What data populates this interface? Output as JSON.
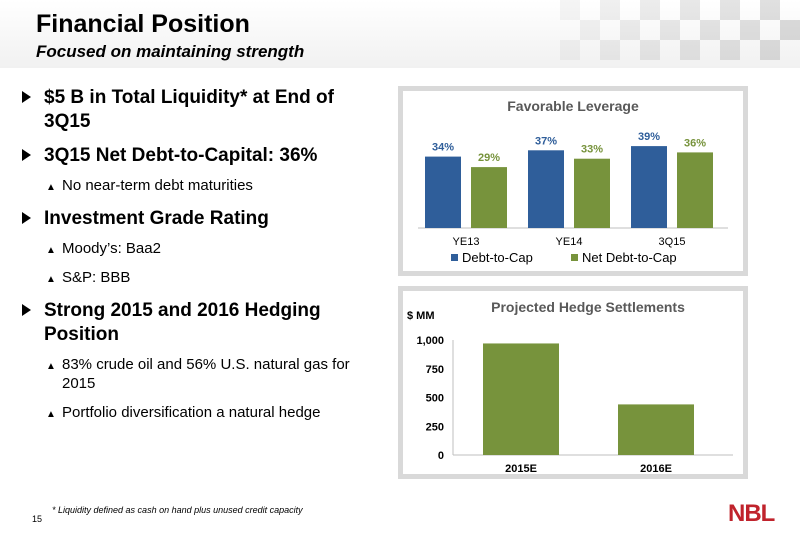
{
  "header": {
    "title": "Financial Position",
    "subtitle": "Focused on maintaining strength"
  },
  "bullets": [
    {
      "text": "$5 B in Total Liquidity* at End of 3Q15",
      "subs": []
    },
    {
      "text": "3Q15 Net Debt-to-Capital: 36%",
      "subs": [
        "No near-term debt maturities"
      ]
    },
    {
      "text": "Investment Grade Rating",
      "subs": [
        "Moody’s: Baa2",
        "S&P: BBB"
      ]
    },
    {
      "text": "Strong 2015 and 2016 Hedging Position",
      "subs": [
        "83% crude oil and 56% U.S. natural gas for 2015",
        "Portfolio diversification a natural hedge"
      ]
    }
  ],
  "footnote": "* Liquidity defined as cash on hand plus unused credit capacity",
  "page_number": "15",
  "logo_text": "NBL",
  "colors": {
    "blue": "#2f5e9a",
    "green": "#77933c",
    "logo_red": "#c0232c"
  },
  "chart_data": [
    {
      "type": "bar",
      "title": "Favorable Leverage",
      "categories": [
        "YE13",
        "YE14",
        "3Q15"
      ],
      "series": [
        {
          "name": "Debt-to-Cap",
          "values": [
            34,
            37,
            39
          ],
          "labels": [
            "34%",
            "37%",
            "39%"
          ],
          "color": "#2f5e9a"
        },
        {
          "name": "Net Debt-to-Cap",
          "values": [
            29,
            33,
            36
          ],
          "labels": [
            "29%",
            "33%",
            "36%"
          ],
          "color": "#77933c"
        }
      ],
      "legend": "bottom"
    },
    {
      "type": "bar",
      "title": "Projected Hedge Settlements",
      "ylabel": "$ MM",
      "categories": [
        "2015E",
        "2016E"
      ],
      "values": [
        970,
        440
      ],
      "yticks": [
        "0",
        "250",
        "500",
        "750",
        "1,000"
      ],
      "ylim": [
        0,
        1000
      ],
      "color": "#77933c"
    }
  ]
}
